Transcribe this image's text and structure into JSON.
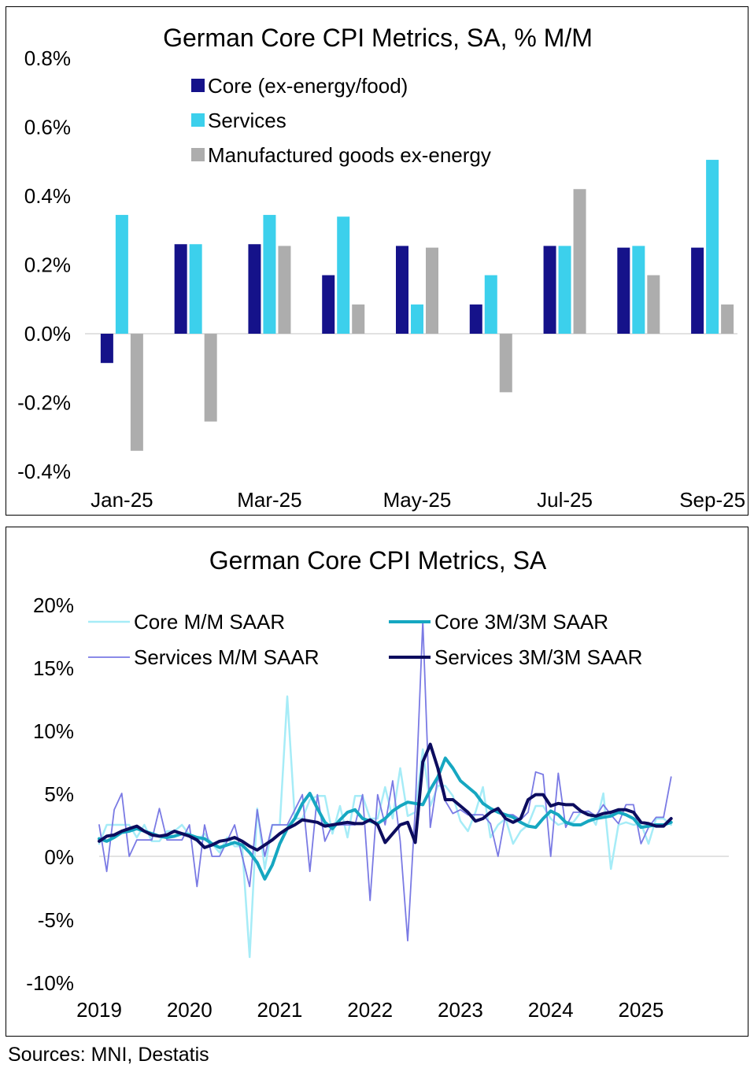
{
  "source_note": "Sources: MNI, Destatis",
  "chart_data": [
    {
      "type": "bar",
      "title": "German Core CPI Metrics, SA, % M/M",
      "categories": [
        "Jan-25",
        "Feb-25",
        "Mar-25",
        "Apr-25",
        "May-25",
        "Jun-25",
        "Jul-25",
        "Aug-25",
        "Sep-25"
      ],
      "tick_labels": [
        "Jan-25",
        "Mar-25",
        "May-25",
        "Jul-25",
        "Sep-25"
      ],
      "ylim": [
        -0.4,
        0.8
      ],
      "yticks": [
        -0.4,
        -0.2,
        0.0,
        0.2,
        0.4,
        0.6,
        0.8
      ],
      "ytick_labels": [
        "-0.4%",
        "-0.2%",
        "0.0%",
        "0.2%",
        "0.4%",
        "0.6%",
        "0.8%"
      ],
      "legend_position": "top-center",
      "series": [
        {
          "name": "Core (ex-energy/food)",
          "color": "#15128a",
          "values": [
            -0.085,
            0.26,
            0.26,
            0.17,
            0.255,
            0.085,
            0.255,
            0.25,
            0.25
          ]
        },
        {
          "name": "Services",
          "color": "#3cd0ec",
          "values": [
            0.345,
            0.26,
            0.345,
            0.34,
            0.085,
            0.17,
            0.255,
            0.255,
            0.505
          ]
        },
        {
          "name": "Manufactured goods ex-energy",
          "color": "#adadad",
          "values": [
            -0.34,
            -0.255,
            0.255,
            0.085,
            0.25,
            -0.17,
            0.42,
            0.17,
            0.085
          ]
        }
      ]
    },
    {
      "type": "line",
      "title": "German Core CPI Metrics, SA",
      "x_start": 2019.0,
      "x_step": 0.0833333,
      "xlim": [
        2019.0,
        2025.92
      ],
      "xticks": [
        2019,
        2020,
        2021,
        2022,
        2023,
        2024,
        2025
      ],
      "xtick_labels": [
        "2019",
        "2020",
        "2021",
        "2022",
        "2023",
        "2024",
        "2025"
      ],
      "ylim": [
        -10,
        20
      ],
      "yticks": [
        -10,
        -5,
        0,
        5,
        10,
        15,
        20
      ],
      "ytick_labels": [
        "-10%",
        "-5%",
        "0%",
        "5%",
        "10%",
        "15%",
        "20%"
      ],
      "legend_position": "top",
      "series": [
        {
          "name": "Core M/M SAAR",
          "color": "#a6ecf7",
          "width": 2.5,
          "values": [
            1.0,
            2.5,
            2.5,
            2.5,
            2.5,
            1.5,
            2.5,
            1.2,
            1.2,
            2.0,
            2.0,
            2.5,
            1.7,
            1.2,
            1.8,
            1.0,
            0.3,
            1.5,
            0.8,
            0.8,
            -8.0,
            3.8,
            -1.0,
            2.5,
            2.5,
            12.7,
            3.0,
            3.0,
            4.5,
            4.8,
            4.8,
            1.8,
            4.0,
            1.5,
            4.8,
            4.8,
            3.0,
            3.0,
            5.5,
            3.0,
            7.0,
            3.2,
            3.5,
            8.5,
            4.0,
            5.6,
            5.6,
            4.8,
            2.8,
            2.0,
            3.5,
            5.5,
            1.5,
            2.5,
            3.0,
            1.0,
            2.0,
            2.5,
            4.0,
            4.0,
            3.0,
            2.5,
            2.7,
            2.7,
            3.5,
            3.5,
            2.5,
            5.0,
            -1.0,
            2.5,
            2.7,
            2.5,
            2.6,
            1.0,
            3.0,
            3.0,
            2.5
          ]
        },
        {
          "name": "Services M/M SAAR",
          "color": "#7a7ae4",
          "width": 1.8,
          "values": [
            2.5,
            -1.2,
            3.7,
            5.0,
            0.0,
            1.3,
            1.3,
            1.3,
            3.8,
            1.3,
            1.3,
            1.3,
            2.5,
            -2.4,
            2.5,
            0.0,
            0.0,
            1.2,
            2.5,
            0.0,
            -2.4,
            3.7,
            0.0,
            2.5,
            2.5,
            2.5,
            3.7,
            4.9,
            -1.2,
            4.9,
            1.2,
            2.5,
            2.5,
            2.5,
            2.5,
            4.9,
            -3.5,
            4.9,
            2.5,
            6.0,
            1.2,
            -6.7,
            3.8,
            18.7,
            2.3,
            6.3,
            4.4,
            3.4,
            3.7,
            3.3,
            3.3,
            3.3,
            2.6,
            0.0,
            3.3,
            3.3,
            2.9,
            3.5,
            6.7,
            6.5,
            0.0,
            6.6,
            2.3,
            3.5,
            3.5,
            3.6,
            3.2,
            4.1,
            3.3,
            2.6,
            4.1,
            4.1,
            1.0,
            2.3,
            3.1,
            3.1,
            6.3
          ]
        },
        {
          "name": "Core 3M/3M SAAR",
          "color": "#16a7c1",
          "width": 4,
          "values": [
            1.4,
            1.2,
            1.5,
            1.9,
            2.0,
            2.2,
            2.0,
            1.8,
            1.6,
            1.5,
            1.6,
            1.8,
            1.7,
            1.5,
            1.4,
            1.0,
            0.7,
            0.9,
            1.1,
            0.9,
            0.3,
            -0.5,
            -1.8,
            -0.7,
            1.0,
            2.2,
            3.0,
            4.2,
            5.0,
            3.8,
            2.7,
            2.2,
            2.9,
            3.5,
            3.7,
            3.0,
            2.8,
            2.6,
            3.0,
            3.6,
            4.0,
            4.3,
            4.2,
            4.1,
            5.3,
            6.3,
            7.8,
            7.0,
            6.0,
            5.5,
            5.0,
            4.2,
            3.8,
            3.5,
            3.3,
            3.1,
            2.7,
            2.4,
            2.3,
            3.0,
            3.6,
            3.3,
            2.7,
            2.5,
            2.5,
            2.8,
            3.0,
            3.1,
            3.2,
            3.5,
            3.3,
            3.0,
            2.3,
            2.4,
            2.5,
            2.5,
            2.7
          ]
        },
        {
          "name": "Services 3M/3M SAAR",
          "color": "#0c0c5e",
          "width": 4,
          "values": [
            1.2,
            1.6,
            1.7,
            2.0,
            2.2,
            2.4,
            2.0,
            1.7,
            1.6,
            1.7,
            2.0,
            1.8,
            1.6,
            1.3,
            0.7,
            0.9,
            1.2,
            1.3,
            1.5,
            1.2,
            0.8,
            0.5,
            0.9,
            1.3,
            1.8,
            2.2,
            2.5,
            2.9,
            2.8,
            2.7,
            2.4,
            2.5,
            2.6,
            2.7,
            2.6,
            2.6,
            2.9,
            2.5,
            1.1,
            1.8,
            2.5,
            2.7,
            1.1,
            7.5,
            8.9,
            7.0,
            4.5,
            4.5,
            4.0,
            3.5,
            2.8,
            3.0,
            3.5,
            3.8,
            3.0,
            2.7,
            3.0,
            4.5,
            4.9,
            4.9,
            4.0,
            4.2,
            4.1,
            4.1,
            3.6,
            3.3,
            3.2,
            3.4,
            3.5,
            3.7,
            3.7,
            3.5,
            2.7,
            2.6,
            2.4,
            2.4,
            3.0
          ]
        }
      ]
    }
  ]
}
